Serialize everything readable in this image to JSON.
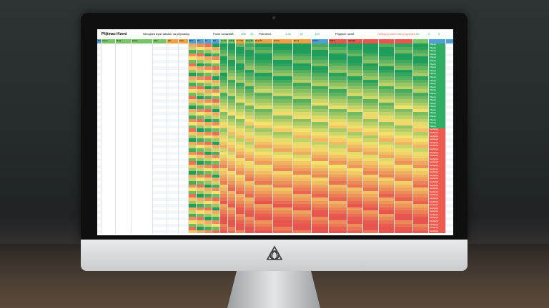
{
  "sheet": {
    "title": "Příjímací řízení",
    "subtitle": "Nenajdeš lepší tabulku na přijímačky",
    "stat1_label": "Počet uchazečů",
    "stat1_values": [
      "50",
      "300",
      "25"
    ],
    "stat2_label": "Průměrné",
    "stat2_values": [
      "3,26",
      "87",
      "133"
    ],
    "stat3_label": "Přijatých ročně",
    "stat3_value": "8",
    "stat4_label": "Celkový počet míst (rozpočet)",
    "stat4_values": [
      "50",
      "0",
      "0"
    ],
    "status_admitted": "Přijat(a)",
    "status_rejected": "Nepřijat(a)",
    "columns": [
      "Příjmení",
      "Jméno",
      "Škola",
      "Datum",
      "Obor",
      "Poz.",
      "Prům.",
      "Body",
      "PZ",
      "ČJ",
      "MA",
      "Součet",
      "Pořadí",
      "Pr. body",
      "Body ŠP",
      "Body ŠZ",
      "Součet",
      "Bonus",
      "Celkem",
      "Pořadí",
      "Výsledek"
    ]
  },
  "colors": {
    "green": "#1e9e5a",
    "yellow": "#f4e36b",
    "red": "#e8554e",
    "header_green": "#7bc36b",
    "header_orange": "#f0a040",
    "header_blue": "#4f9fd8"
  }
}
